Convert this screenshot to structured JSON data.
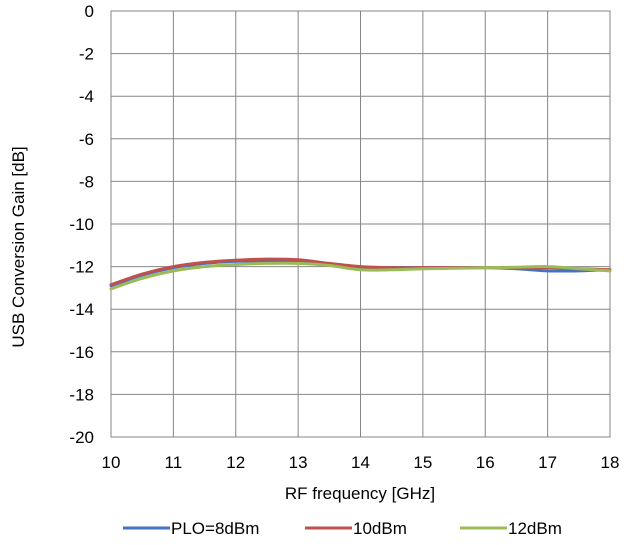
{
  "chart_data": {
    "type": "line",
    "xlabel": "RF frequency [GHz]",
    "ylabel": "USB Conversion Gain [dB]",
    "xlim": [
      10,
      18
    ],
    "ylim": [
      -20,
      0
    ],
    "x_ticks": [
      10,
      11,
      12,
      13,
      14,
      15,
      16,
      17,
      18
    ],
    "y_ticks": [
      0,
      -2,
      -4,
      -6,
      -8,
      -10,
      -12,
      -14,
      -16,
      -18,
      -20
    ],
    "grid": true,
    "legend_position": "bottom",
    "x": [
      10,
      10.5,
      11,
      11.5,
      12,
      12.5,
      13,
      13.5,
      14,
      14.5,
      15,
      15.5,
      16,
      16.5,
      17,
      17.5,
      18
    ],
    "series": [
      {
        "name": "PLO=8dBm",
        "color": "#4472C4",
        "values": [
          -12.9,
          -12.4,
          -12.05,
          -11.85,
          -11.75,
          -11.75,
          -11.75,
          -11.9,
          -12.05,
          -12.05,
          -12.05,
          -12.05,
          -12.05,
          -12.1,
          -12.2,
          -12.2,
          -12.15
        ]
      },
      {
        "name": "10dBm",
        "color": "#C0504D",
        "values": [
          -12.85,
          -12.35,
          -12.0,
          -11.8,
          -11.7,
          -11.65,
          -11.68,
          -11.85,
          -12.0,
          -12.05,
          -12.05,
          -12.05,
          -12.05,
          -12.05,
          -12.05,
          -12.1,
          -12.15
        ]
      },
      {
        "name": "12dBm",
        "color": "#9BBB59",
        "values": [
          -13.05,
          -12.55,
          -12.2,
          -12.0,
          -11.9,
          -11.85,
          -11.85,
          -11.95,
          -12.15,
          -12.15,
          -12.1,
          -12.08,
          -12.05,
          -12.03,
          -12.0,
          -12.1,
          -12.2
        ]
      }
    ]
  }
}
